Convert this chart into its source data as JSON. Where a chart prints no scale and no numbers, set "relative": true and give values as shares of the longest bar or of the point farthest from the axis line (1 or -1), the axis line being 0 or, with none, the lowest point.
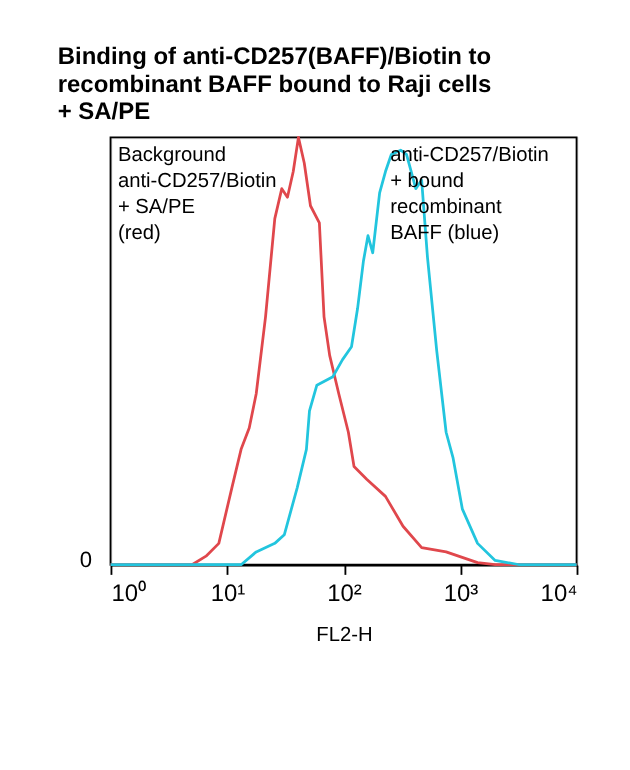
{
  "chart_data": {
    "type": "line",
    "relative": true,
    "log": "x",
    "title": "Binding of anti-CD257(BAFF)/Biotin to recombinant BAFF bound to Raji cells + SA/PE",
    "xlabel": "FL2-H",
    "xlim": [
      1,
      10000
    ],
    "xticks": [
      {
        "value": 1,
        "label": "10⁰"
      },
      {
        "value": 10,
        "label": "10¹"
      },
      {
        "value": 100,
        "label": "10²"
      },
      {
        "value": 1000,
        "label": "10³"
      },
      {
        "value": 10000,
        "label": "10⁴"
      }
    ],
    "annotations": [
      "0"
    ],
    "grid": false,
    "marker": "none",
    "line_style": "solid",
    "series": [
      {
        "name": "Background\nanti-CD257/Biotin\n+ SA/PE\n(red)",
        "color": "#e0474c",
        "x": [
          1,
          5,
          6.6,
          8.5,
          11,
          13.2,
          15.5,
          17.8,
          21.4,
          25.7,
          29.5,
          33,
          37,
          41,
          46,
          52,
          62,
          68,
          76,
          91,
          110,
          123,
          158,
          229,
          324,
          468,
          759,
          1413,
          2000,
          10000
        ],
        "values": [
          0,
          0,
          0.02,
          0.05,
          0.18,
          0.27,
          0.32,
          0.4,
          0.58,
          0.81,
          0.88,
          0.86,
          0.92,
          1,
          0.94,
          0.84,
          0.8,
          0.58,
          0.49,
          0.4,
          0.31,
          0.23,
          0.2,
          0.16,
          0.09,
          0.04,
          0.03,
          0.005,
          0,
          0
        ]
      },
      {
        "name": "anti-CD257/Biotin\n+ bound\nrecombinant\nBAFF  (blue)",
        "color": "#22c5de",
        "x": [
          1,
          13.2,
          17.8,
          25.7,
          31,
          40,
          48,
          51,
          59,
          81,
          98,
          117,
          132,
          148,
          162,
          178,
          204,
          229,
          257,
          309,
          347,
          417,
          468,
          525,
          631,
          759,
          871,
          1047,
          1413,
          2000,
          3236,
          10000
        ],
        "values": [
          0,
          0,
          0.03,
          0.05,
          0.07,
          0.18,
          0.27,
          0.36,
          0.42,
          0.44,
          0.48,
          0.51,
          0.6,
          0.71,
          0.77,
          0.73,
          0.87,
          0.92,
          0.96,
          0.97,
          0.96,
          0.88,
          0.9,
          0.72,
          0.5,
          0.31,
          0.25,
          0.13,
          0.05,
          0.01,
          0,
          0
        ]
      }
    ]
  }
}
